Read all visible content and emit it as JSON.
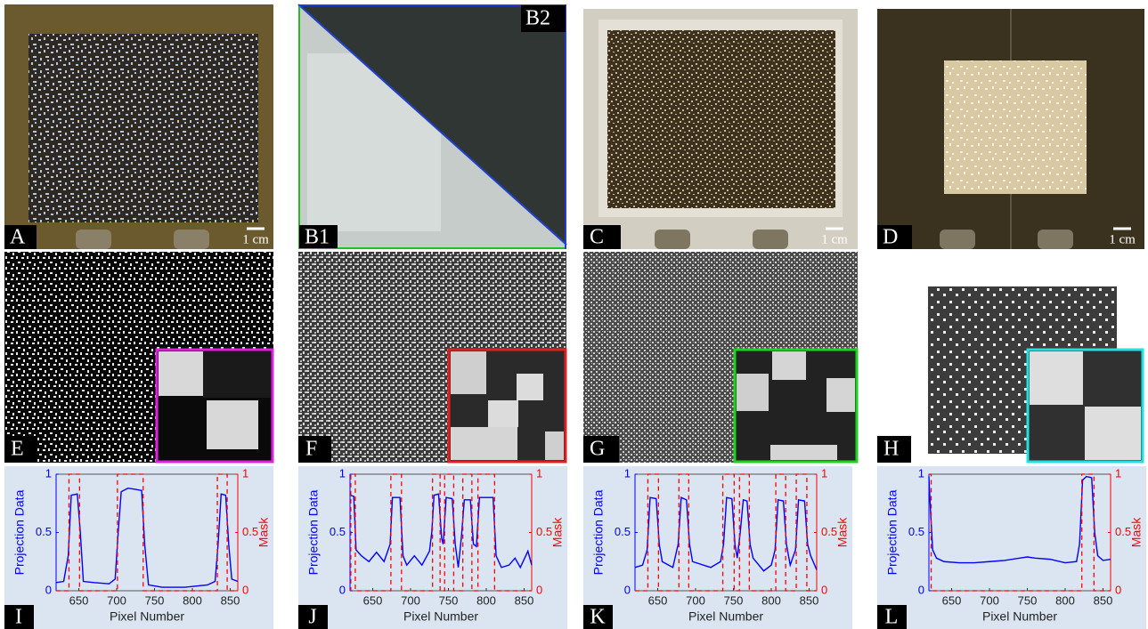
{
  "panels": [
    {
      "label": "A",
      "scale_bar": "1 cm"
    },
    {
      "label": "B1"
    },
    {
      "label": "B2"
    },
    {
      "label": "C",
      "scale_bar": "1 cm"
    },
    {
      "label": "D",
      "scale_bar": "1 cm"
    },
    {
      "label": "E"
    },
    {
      "label": "F"
    },
    {
      "label": "G"
    },
    {
      "label": "H"
    }
  ],
  "chart_data": [
    {
      "type": "line",
      "label": "I",
      "xlabel": "Pixel Number",
      "ylabel": "Projection Data",
      "y2label": "Mask",
      "xlim": [
        620,
        860
      ],
      "xticks": [
        650,
        700,
        750,
        800,
        850
      ],
      "ylim": [
        0,
        1
      ],
      "yticks": [
        0,
        0.5,
        1
      ],
      "y2lim": [
        0,
        1
      ],
      "y2ticks": [
        0,
        0.5,
        1
      ],
      "series": [
        {
          "color": "#0000ff",
          "x": [
            620,
            630,
            636,
            640,
            648,
            652,
            656,
            670,
            690,
            698,
            702,
            706,
            715,
            725,
            733,
            737,
            742,
            760,
            790,
            820,
            830,
            834,
            838,
            844,
            848,
            852,
            860
          ],
          "values": [
            0.07,
            0.08,
            0.3,
            0.82,
            0.83,
            0.5,
            0.08,
            0.07,
            0.06,
            0.1,
            0.5,
            0.85,
            0.88,
            0.87,
            0.86,
            0.4,
            0.05,
            0.03,
            0.03,
            0.05,
            0.08,
            0.4,
            0.83,
            0.82,
            0.4,
            0.1,
            0.08
          ]
        },
        {
          "color": "#ff0000",
          "axis": "y2",
          "dashed": true,
          "x": [
            620,
            637,
            637,
            651,
            651,
            701,
            701,
            735,
            735,
            833,
            833,
            846,
            846,
            860
          ],
          "values": [
            0,
            0,
            1,
            1,
            0,
            0,
            1,
            1,
            0,
            0,
            1,
            1,
            0,
            0
          ]
        }
      ]
    },
    {
      "type": "line",
      "label": "J",
      "xlabel": "Pixel Number",
      "ylabel": "Projection Data",
      "y2label": "Mask",
      "xlim": [
        620,
        860
      ],
      "xticks": [
        650,
        700,
        750,
        800,
        850
      ],
      "ylim": [
        0,
        1
      ],
      "yticks": [
        0,
        0.5,
        1
      ],
      "y2lim": [
        0,
        1
      ],
      "y2ticks": [
        0,
        0.5,
        1
      ],
      "series": [
        {
          "color": "#0000ff",
          "x": [
            620,
            625,
            628,
            635,
            645,
            655,
            665,
            673,
            676,
            686,
            690,
            695,
            705,
            715,
            725,
            728,
            731,
            737,
            741,
            743,
            747,
            755,
            759,
            763,
            767,
            771,
            779,
            783,
            787,
            791,
            809,
            813,
            820,
            830,
            838,
            845,
            855,
            860
          ],
          "values": [
            0.82,
            0.81,
            0.35,
            0.3,
            0.25,
            0.33,
            0.25,
            0.4,
            0.8,
            0.8,
            0.3,
            0.22,
            0.3,
            0.22,
            0.34,
            0.5,
            0.82,
            0.83,
            0.45,
            0.4,
            0.8,
            0.79,
            0.4,
            0.2,
            0.45,
            0.78,
            0.78,
            0.4,
            0.38,
            0.8,
            0.8,
            0.3,
            0.2,
            0.22,
            0.28,
            0.2,
            0.34,
            0.22
          ]
        },
        {
          "color": "#ff0000",
          "axis": "y2",
          "dashed": true,
          "x": [
            620,
            621,
            621,
            627,
            627,
            674,
            674,
            688,
            688,
            729,
            729,
            739,
            739,
            745,
            745,
            757,
            757,
            769,
            769,
            781,
            781,
            789,
            789,
            811,
            811,
            860
          ],
          "values": [
            0,
            0,
            1,
            1,
            0,
            0,
            1,
            1,
            0,
            0,
            1,
            1,
            0,
            0,
            1,
            1,
            0,
            0,
            1,
            1,
            0,
            0,
            1,
            1,
            0,
            0
          ]
        }
      ]
    },
    {
      "type": "line",
      "label": "K",
      "xlabel": "Pixel Number",
      "ylabel": "Projection Data",
      "y2label": "Mask",
      "xlim": [
        620,
        860
      ],
      "xticks": [
        650,
        700,
        750,
        800,
        850
      ],
      "ylim": [
        0,
        1
      ],
      "yticks": [
        0,
        0.5,
        1
      ],
      "y2lim": [
        0,
        1
      ],
      "y2ticks": [
        0,
        0.5,
        1
      ],
      "series": [
        {
          "color": "#0000ff",
          "x": [
            620,
            630,
            636,
            640,
            648,
            652,
            656,
            670,
            677,
            681,
            688,
            692,
            696,
            720,
            733,
            737,
            741,
            748,
            752,
            755,
            759,
            763,
            768,
            772,
            776,
            790,
            800,
            805,
            809,
            816,
            820,
            825,
            832,
            836,
            844,
            848,
            852,
            860
          ],
          "values": [
            0.2,
            0.22,
            0.35,
            0.8,
            0.79,
            0.4,
            0.25,
            0.2,
            0.4,
            0.8,
            0.78,
            0.4,
            0.25,
            0.2,
            0.25,
            0.4,
            0.8,
            0.79,
            0.4,
            0.28,
            0.5,
            0.78,
            0.77,
            0.4,
            0.28,
            0.17,
            0.22,
            0.35,
            0.78,
            0.77,
            0.4,
            0.22,
            0.35,
            0.78,
            0.77,
            0.4,
            0.3,
            0.18
          ]
        },
        {
          "color": "#ff0000",
          "axis": "y2",
          "dashed": true,
          "x": [
            620,
            637,
            637,
            651,
            651,
            678,
            678,
            691,
            691,
            736,
            736,
            751,
            751,
            758,
            758,
            771,
            771,
            806,
            806,
            819,
            819,
            833,
            833,
            847,
            847,
            860
          ],
          "values": [
            0,
            0,
            1,
            1,
            0,
            0,
            1,
            1,
            0,
            0,
            1,
            1,
            0,
            0,
            1,
            1,
            0,
            0,
            1,
            1,
            0,
            0,
            1,
            1,
            0,
            0
          ]
        }
      ]
    },
    {
      "type": "line",
      "label": "L",
      "xlabel": "Pixel Number",
      "ylabel": "Projection Data",
      "y2label": "Mask",
      "xlim": [
        620,
        860
      ],
      "xticks": [
        650,
        700,
        750,
        800,
        850
      ],
      "ylim": [
        0,
        1
      ],
      "yticks": [
        0,
        0.5,
        1
      ],
      "y2lim": [
        0,
        1
      ],
      "y2ticks": [
        0,
        0.5,
        1
      ],
      "series": [
        {
          "color": "#0000ff",
          "x": [
            620,
            622,
            625,
            630,
            640,
            660,
            680,
            700,
            720,
            740,
            750,
            760,
            780,
            800,
            815,
            819,
            823,
            828,
            835,
            839,
            843,
            850,
            860
          ],
          "values": [
            0.98,
            0.7,
            0.35,
            0.28,
            0.25,
            0.24,
            0.24,
            0.25,
            0.26,
            0.28,
            0.29,
            0.28,
            0.27,
            0.24,
            0.25,
            0.4,
            0.95,
            0.98,
            0.97,
            0.5,
            0.3,
            0.26,
            0.27
          ]
        },
        {
          "color": "#ff0000",
          "axis": "y2",
          "dashed": true,
          "x": [
            620,
            623,
            623,
            822,
            822,
            838,
            838,
            860
          ],
          "values": [
            1,
            1,
            0,
            0,
            1,
            1,
            0,
            0
          ]
        }
      ]
    }
  ]
}
